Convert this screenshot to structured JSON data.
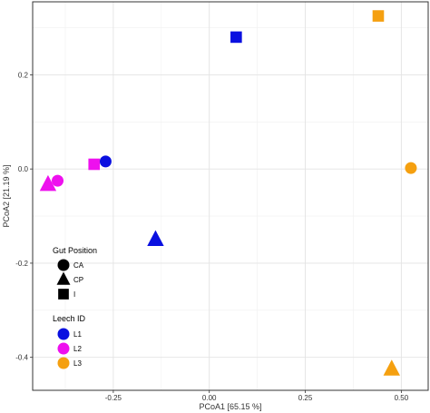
{
  "chart_data": {
    "type": "scatter",
    "title": "",
    "xlabel": "PCoA1 [65.15 %]",
    "ylabel": "PCoA2 [21.19 %]",
    "xlim": [
      -0.46,
      0.57
    ],
    "ylim": [
      -0.47,
      0.355
    ],
    "x_ticks": [
      {
        "value": -0.25,
        "label": "-0.25"
      },
      {
        "value": 0.0,
        "label": "0.00"
      },
      {
        "value": 0.25,
        "label": "0.25"
      },
      {
        "value": 0.5,
        "label": "0.50"
      }
    ],
    "y_ticks": [
      {
        "value": 0.2,
        "label": "0.2"
      },
      {
        "value": 0.0,
        "label": "0.0"
      },
      {
        "value": -0.2,
        "label": "-0.2"
      },
      {
        "value": -0.4,
        "label": "-0.4"
      }
    ],
    "grid": true,
    "colors": {
      "L1": "#0a10e0",
      "L2": "#ee10ee",
      "L3": "#f5a010"
    },
    "points": [
      {
        "x": 0.07,
        "y": 0.28,
        "position": "I",
        "leech": "L1"
      },
      {
        "x": -0.27,
        "y": 0.016,
        "position": "CA",
        "leech": "L1"
      },
      {
        "x": -0.14,
        "y": -0.15,
        "position": "CP",
        "leech": "L1"
      },
      {
        "x": -0.3,
        "y": 0.01,
        "position": "I",
        "leech": "L2"
      },
      {
        "x": -0.395,
        "y": -0.025,
        "position": "CA",
        "leech": "L2"
      },
      {
        "x": -0.42,
        "y": -0.033,
        "position": "CP",
        "leech": "L2"
      },
      {
        "x": 0.44,
        "y": 0.325,
        "position": "I",
        "leech": "L3"
      },
      {
        "x": 0.525,
        "y": 0.002,
        "position": "CA",
        "leech": "L3"
      },
      {
        "x": 0.475,
        "y": -0.425,
        "position": "CP",
        "leech": "L3"
      }
    ],
    "legend": {
      "placement": "bottom-left",
      "shape_title": "Gut Position",
      "shapes": [
        {
          "label": "CA",
          "shape": "circle"
        },
        {
          "label": "CP",
          "shape": "triangle"
        },
        {
          "label": "I",
          "shape": "square"
        }
      ],
      "color_title": "Leech ID",
      "colors": [
        {
          "label": "L1",
          "color": "#0a10e0"
        },
        {
          "label": "L2",
          "color": "#ee10ee"
        },
        {
          "label": "L3",
          "color": "#f5a010"
        }
      ]
    }
  }
}
